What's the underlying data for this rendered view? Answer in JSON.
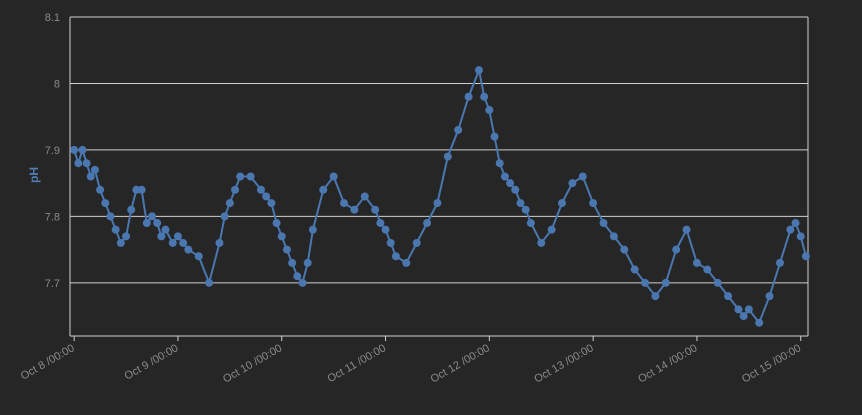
{
  "chart_data": {
    "type": "line",
    "title": "",
    "xlabel": "",
    "ylabel": "pH",
    "ylim": [
      7.62,
      8.1
    ],
    "yticks": [
      7.7,
      7.8,
      7.9,
      8,
      8.1
    ],
    "ytick_labels": [
      "7.7",
      "7.8",
      "7.9",
      "8",
      "8.1"
    ],
    "xlim": [
      -0.04,
      7.07
    ],
    "xticks": [
      0,
      1,
      2,
      3,
      4,
      5,
      6,
      7
    ],
    "xtick_labels": [
      "Oct 8 /00:00",
      "Oct 9 /00:00",
      "Oct 10 /00:00",
      "Oct 11 /00:00",
      "Oct 12 /00:00",
      "Oct 13 /00:00",
      "Oct 14 /00:00",
      "Oct 15 /00:00"
    ],
    "grid": true,
    "colors": {
      "background": "#262626",
      "grid": "#cfcfcf",
      "series": "#4a77b0"
    },
    "series": [
      {
        "name": "",
        "x": [
          0.0,
          0.04,
          0.08,
          0.12,
          0.16,
          0.2,
          0.25,
          0.3,
          0.35,
          0.4,
          0.45,
          0.5,
          0.55,
          0.6,
          0.65,
          0.7,
          0.75,
          0.8,
          0.84,
          0.88,
          0.95,
          1.0,
          1.05,
          1.1,
          1.2,
          1.3,
          1.4,
          1.45,
          1.5,
          1.55,
          1.6,
          1.7,
          1.8,
          1.85,
          1.9,
          1.95,
          2.0,
          2.05,
          2.1,
          2.15,
          2.2,
          2.25,
          2.3,
          2.4,
          2.5,
          2.6,
          2.7,
          2.8,
          2.9,
          2.95,
          3.0,
          3.05,
          3.1,
          3.2,
          3.3,
          3.4,
          3.5,
          3.6,
          3.7,
          3.8,
          3.9,
          3.95,
          4.0,
          4.05,
          4.1,
          4.15,
          4.2,
          4.25,
          4.3,
          4.35,
          4.4,
          4.5,
          4.6,
          4.7,
          4.8,
          4.9,
          5.0,
          5.1,
          5.2,
          5.3,
          5.4,
          5.5,
          5.6,
          5.7,
          5.8,
          5.9,
          6.0,
          6.1,
          6.2,
          6.3,
          6.4,
          6.45,
          6.5,
          6.6,
          6.7,
          6.8,
          6.9,
          6.95,
          7.0,
          7.05
        ],
        "values": [
          7.9,
          7.88,
          7.9,
          7.88,
          7.86,
          7.87,
          7.84,
          7.82,
          7.8,
          7.78,
          7.76,
          7.77,
          7.81,
          7.84,
          7.84,
          7.79,
          7.8,
          7.79,
          7.77,
          7.78,
          7.76,
          7.77,
          7.76,
          7.75,
          7.74,
          7.7,
          7.76,
          7.8,
          7.82,
          7.84,
          7.86,
          7.86,
          7.84,
          7.83,
          7.82,
          7.79,
          7.77,
          7.75,
          7.73,
          7.71,
          7.7,
          7.73,
          7.78,
          7.84,
          7.86,
          7.82,
          7.81,
          7.83,
          7.81,
          7.79,
          7.78,
          7.76,
          7.74,
          7.73,
          7.76,
          7.79,
          7.82,
          7.89,
          7.93,
          7.98,
          8.02,
          7.98,
          7.96,
          7.92,
          7.88,
          7.86,
          7.85,
          7.84,
          7.82,
          7.81,
          7.79,
          7.76,
          7.78,
          7.82,
          7.85,
          7.86,
          7.82,
          7.79,
          7.77,
          7.75,
          7.72,
          7.7,
          7.68,
          7.7,
          7.75,
          7.78,
          7.73,
          7.72,
          7.7,
          7.68,
          7.66,
          7.65,
          7.66,
          7.64,
          7.68,
          7.73,
          7.78,
          7.79,
          7.77,
          7.74
        ]
      }
    ]
  }
}
